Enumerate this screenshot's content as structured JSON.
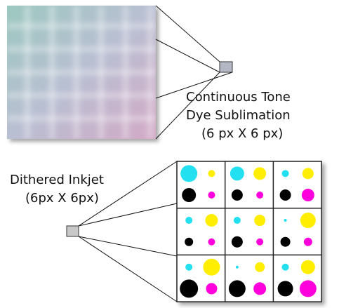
{
  "continuous": {
    "lines": [
      "Continuous Tone",
      "Dye Sublimation",
      "(6 px X 6 px)"
    ]
  },
  "dithered": {
    "lines": [
      "Dithered Inkjet",
      "(6px X 6px)"
    ]
  }
}
